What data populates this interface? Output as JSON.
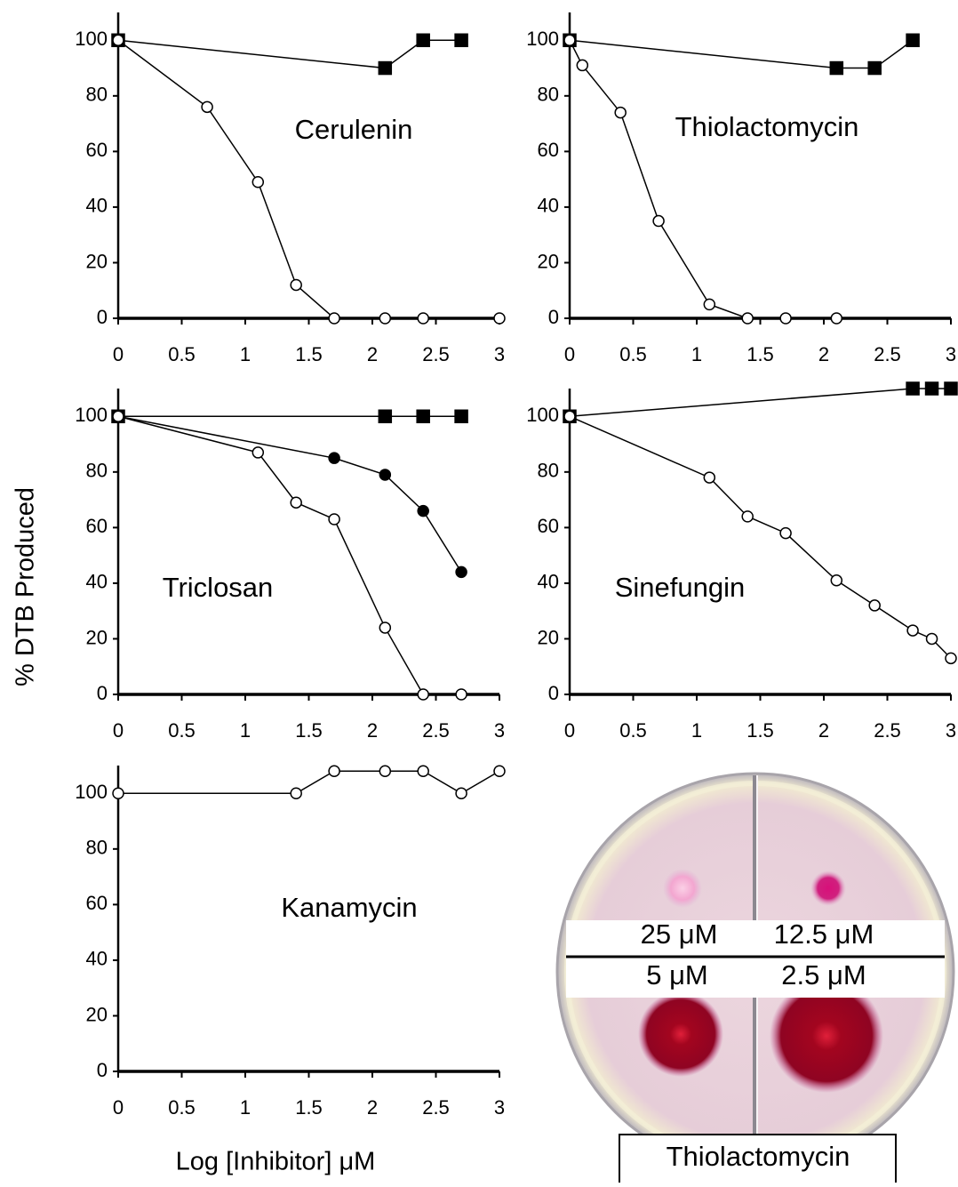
{
  "y_label": "% DTB Produced",
  "x_label": "Log [Inhibitor] μM",
  "photo": {
    "labels": [
      "25 μM",
      "12.5 μM",
      "5 μM",
      "2.5 μM"
    ],
    "caption": "Thiolactomycin"
  },
  "chart_data": [
    {
      "type": "line",
      "title": "Cerulenin",
      "xlim": [
        0,
        3
      ],
      "ylim": [
        0,
        110
      ],
      "xticks": [
        0,
        0.5,
        1,
        1.5,
        2,
        2.5,
        3
      ],
      "yticks": [
        0,
        20,
        40,
        60,
        80,
        100
      ],
      "series": [
        {
          "color": "#000000",
          "marker": "square",
          "x": [
            0,
            2.1,
            2.4,
            2.7
          ],
          "values": [
            100,
            90,
            100,
            100
          ]
        },
        {
          "color": "#ffffff",
          "marker": "circle",
          "x": [
            0,
            0.7,
            1.1,
            1.4,
            1.7,
            2.1,
            2.4,
            3
          ],
          "values": [
            100,
            76,
            49,
            12,
            0,
            0,
            0,
            0
          ]
        }
      ]
    },
    {
      "type": "line",
      "title": "Thiolactomycin",
      "xlim": [
        0,
        3
      ],
      "ylim": [
        0,
        110
      ],
      "xticks": [
        0,
        0.5,
        1,
        1.5,
        2,
        2.5,
        3
      ],
      "yticks": [
        0,
        20,
        40,
        60,
        80,
        100
      ],
      "series": [
        {
          "color": "#000000",
          "marker": "square",
          "x": [
            0,
            2.1,
            2.4,
            2.7
          ],
          "values": [
            100,
            90,
            90,
            100
          ]
        },
        {
          "color": "#ffffff",
          "marker": "circle",
          "x": [
            0,
            0.1,
            0.4,
            0.7,
            1.1,
            1.4,
            1.7,
            2.1
          ],
          "values": [
            100,
            91,
            74,
            35,
            5,
            0,
            0,
            0
          ]
        }
      ]
    },
    {
      "type": "line",
      "title": "Triclosan",
      "xlim": [
        0,
        3
      ],
      "ylim": [
        0,
        110
      ],
      "xticks": [
        0,
        0.5,
        1,
        1.5,
        2,
        2.5,
        3
      ],
      "yticks": [
        0,
        20,
        40,
        60,
        80,
        100
      ],
      "series": [
        {
          "color": "#000000",
          "marker": "square",
          "x": [
            0,
            2.1,
            2.4,
            2.7
          ],
          "values": [
            100,
            100,
            100,
            100
          ]
        },
        {
          "color": "#000000",
          "marker": "circle",
          "x": [
            0,
            1.7,
            2.1,
            2.4,
            2.7
          ],
          "values": [
            100,
            85,
            79,
            66,
            44
          ]
        },
        {
          "color": "#ffffff",
          "marker": "circle",
          "x": [
            0,
            1.1,
            1.4,
            1.7,
            2.1,
            2.4,
            2.7
          ],
          "values": [
            100,
            87,
            69,
            63,
            24,
            0,
            0
          ]
        }
      ]
    },
    {
      "type": "line",
      "title": "Sinefungin",
      "xlim": [
        0,
        3
      ],
      "ylim": [
        0,
        110
      ],
      "xticks": [
        0,
        0.5,
        1,
        1.5,
        2,
        2.5,
        3
      ],
      "yticks": [
        0,
        20,
        40,
        60,
        80,
        100
      ],
      "series": [
        {
          "color": "#000000",
          "marker": "square",
          "x": [
            0,
            2.7,
            2.85,
            3
          ],
          "values": [
            100,
            110,
            110,
            110
          ]
        },
        {
          "color": "#ffffff",
          "marker": "circle",
          "x": [
            0,
            1.1,
            1.4,
            1.7,
            2.1,
            2.4,
            2.7,
            2.85,
            3
          ],
          "values": [
            100,
            78,
            64,
            58,
            41,
            32,
            23,
            20,
            13
          ]
        }
      ]
    },
    {
      "type": "line",
      "title": "Kanamycin",
      "xlim": [
        0,
        3
      ],
      "ylim": [
        0,
        110
      ],
      "xticks": [
        0,
        0.5,
        1,
        1.5,
        2,
        2.5,
        3
      ],
      "yticks": [
        0,
        20,
        40,
        60,
        80,
        100
      ],
      "series": [
        {
          "color": "#ffffff",
          "marker": "circle",
          "x": [
            0,
            1.4,
            1.7,
            2.1,
            2.4,
            2.7,
            3
          ],
          "values": [
            100,
            100,
            108,
            108,
            108,
            100,
            108
          ]
        }
      ]
    }
  ]
}
